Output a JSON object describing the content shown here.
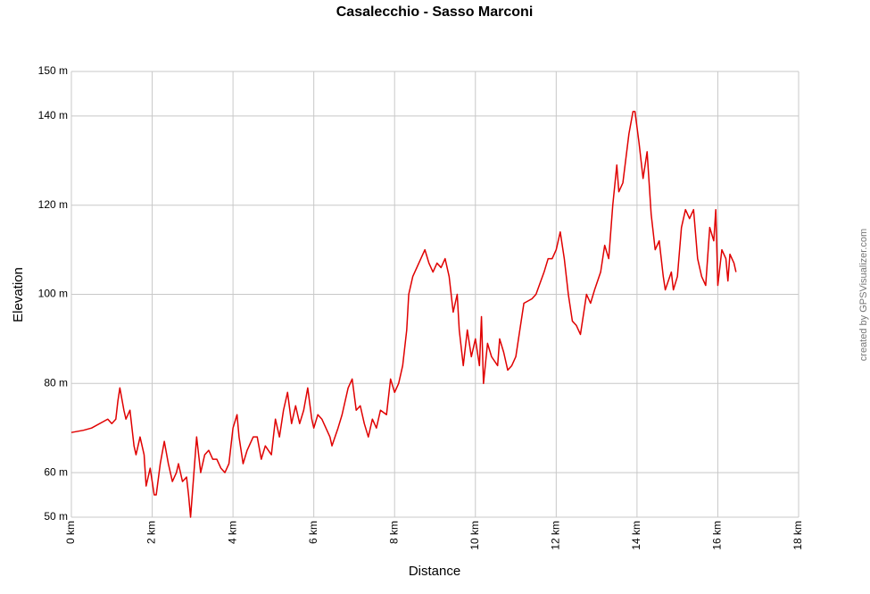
{
  "chart_data": {
    "type": "line",
    "title": "Casalecchio - Sasso Marconi",
    "x_label": "Distance",
    "y_label": "Elevation",
    "credit": "created by GPSVisualizer.com",
    "xlim": [
      0,
      18
    ],
    "ylim": [
      50,
      150
    ],
    "grid": true,
    "xticks": [
      {
        "value": 0,
        "label": "0 km"
      },
      {
        "value": 2,
        "label": "2 km"
      },
      {
        "value": 4,
        "label": "4 km"
      },
      {
        "value": 6,
        "label": "6 km"
      },
      {
        "value": 8,
        "label": "8 km"
      },
      {
        "value": 10,
        "label": "10 km"
      },
      {
        "value": 12,
        "label": "12 km"
      },
      {
        "value": 14,
        "label": "14 km"
      },
      {
        "value": 16,
        "label": "16 km"
      },
      {
        "value": 18,
        "label": "18 km"
      }
    ],
    "yticks": [
      {
        "value": 50,
        "label": "50 m"
      },
      {
        "value": 60,
        "label": "60 m"
      },
      {
        "value": 80,
        "label": "80 m"
      },
      {
        "value": 100,
        "label": "100 m"
      },
      {
        "value": 120,
        "label": "120 m"
      },
      {
        "value": 140,
        "label": "140 m"
      },
      {
        "value": 150,
        "label": "150 m"
      }
    ],
    "x": [
      0,
      0.3,
      0.5,
      0.8,
      0.9,
      1.0,
      1.1,
      1.15,
      1.2,
      1.3,
      1.35,
      1.45,
      1.55,
      1.6,
      1.7,
      1.8,
      1.85,
      1.95,
      2.05,
      2.1,
      2.2,
      2.3,
      2.4,
      2.5,
      2.6,
      2.65,
      2.75,
      2.85,
      2.9,
      2.95,
      3.0,
      3.1,
      3.2,
      3.3,
      3.4,
      3.5,
      3.6,
      3.7,
      3.8,
      3.9,
      4.0,
      4.1,
      4.15,
      4.25,
      4.35,
      4.5,
      4.6,
      4.7,
      4.8,
      4.95,
      5.05,
      5.15,
      5.25,
      5.35,
      5.45,
      5.55,
      5.65,
      5.75,
      5.85,
      5.95,
      6.0,
      6.1,
      6.2,
      6.4,
      6.45,
      6.6,
      6.7,
      6.85,
      6.95,
      7.05,
      7.15,
      7.25,
      7.35,
      7.45,
      7.55,
      7.65,
      7.8,
      7.9,
      8.0,
      8.1,
      8.2,
      8.3,
      8.35,
      8.45,
      8.55,
      8.65,
      8.75,
      8.85,
      8.95,
      9.05,
      9.15,
      9.25,
      9.35,
      9.45,
      9.55,
      9.6,
      9.7,
      9.8,
      9.9,
      10.0,
      10.1,
      10.15,
      10.2,
      10.3,
      10.4,
      10.55,
      10.6,
      10.7,
      10.8,
      10.9,
      11.0,
      11.1,
      11.2,
      11.4,
      11.5,
      11.7,
      11.8,
      11.9,
      12.0,
      12.1,
      12.2,
      12.3,
      12.4,
      12.5,
      12.6,
      12.75,
      12.85,
      12.95,
      13.1,
      13.2,
      13.3,
      13.4,
      13.5,
      13.55,
      13.65,
      13.8,
      13.9,
      13.95,
      14.05,
      14.15,
      14.25,
      14.35,
      14.45,
      14.55,
      14.65,
      14.7,
      14.85,
      14.9,
      15.0,
      15.1,
      15.2,
      15.3,
      15.4,
      15.5,
      15.6,
      15.7,
      15.8,
      15.9,
      15.95,
      16.0,
      16.1,
      16.2,
      16.25,
      16.3,
      16.4,
      16.45
    ],
    "series": [
      {
        "name": "Elevation",
        "color": "#e00000",
        "values": [
          69,
          69.5,
          70,
          71.5,
          72,
          71,
          72,
          76,
          79,
          74,
          72,
          74,
          66,
          64,
          68,
          64,
          57,
          61,
          55,
          55,
          62,
          67,
          62,
          58,
          60,
          62,
          58,
          59,
          55,
          50,
          56,
          68,
          60,
          64,
          65,
          63,
          63,
          61,
          60,
          62,
          70,
          73,
          68,
          62,
          65,
          68,
          68,
          63,
          66,
          64,
          72,
          68,
          74,
          78,
          71,
          75,
          71,
          74,
          79,
          72,
          70,
          73,
          72,
          68,
          66,
          70,
          73,
          79,
          81,
          74,
          75,
          71,
          68,
          72,
          70,
          74,
          73,
          81,
          78,
          80,
          84,
          92,
          100,
          104,
          106,
          108,
          110,
          107,
          105,
          107,
          106,
          108,
          104,
          96,
          100,
          92,
          84,
          92,
          86,
          90,
          84,
          95,
          80,
          89,
          86,
          84,
          90,
          87,
          83,
          84,
          86,
          92,
          98,
          99,
          100,
          105,
          108,
          108,
          110,
          114,
          108,
          100,
          94,
          93,
          91,
          100,
          98,
          101,
          105,
          111,
          108,
          120,
          129,
          123,
          125,
          136,
          141,
          141,
          134,
          126,
          132,
          118,
          110,
          112,
          104,
          101,
          105,
          101,
          104,
          115,
          119,
          117,
          119,
          108,
          104,
          102,
          115,
          112,
          119,
          102,
          110,
          108,
          103,
          109,
          107,
          105
        ]
      }
    ]
  }
}
